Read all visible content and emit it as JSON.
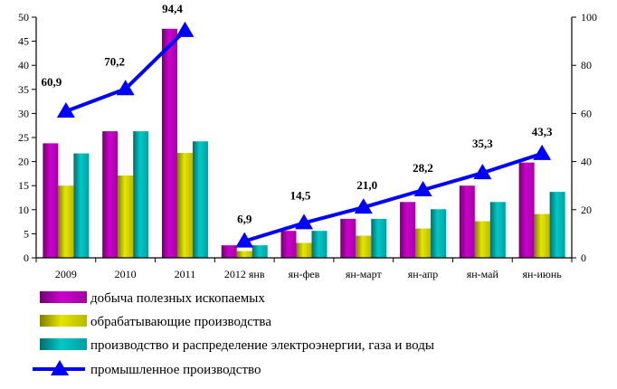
{
  "chart_data": {
    "type": "bar",
    "categories": [
      "2009",
      "2010",
      "2011",
      "2012 янв",
      "ян-фев",
      "ян-март",
      "ян-апр",
      "ян-май",
      "ян-июнь"
    ],
    "series": [
      {
        "name": "добыча полезных ископаемых",
        "type": "bar",
        "axis": "left",
        "color": "#cc00cc",
        "values": [
          23.8,
          26.3,
          47.6,
          2.6,
          5.6,
          8.1,
          11.6,
          15.0,
          19.8
        ]
      },
      {
        "name": "обрабатывающие производства",
        "type": "bar",
        "axis": "left",
        "color": "#e6e600",
        "values": [
          15.0,
          17.1,
          21.8,
          1.4,
          3.1,
          4.6,
          6.1,
          7.6,
          9.1
        ]
      },
      {
        "name": "производство и распределение электроэнергии, газа и воды",
        "type": "bar",
        "axis": "left",
        "color": "#00c8c8",
        "values": [
          21.7,
          26.3,
          24.2,
          2.6,
          5.6,
          8.1,
          10.1,
          11.6,
          13.7
        ]
      },
      {
        "name": "промышленное производство",
        "type": "line",
        "axis": "right",
        "color": "#0000ff",
        "values": [
          60.9,
          70.2,
          94.4,
          6.9,
          14.5,
          21.0,
          28.2,
          35.3,
          43.3
        ],
        "labels": [
          "60,9",
          "70,2",
          "94,4",
          "6,9",
          "14,5",
          "21,0",
          "28,2",
          "35,3",
          "43,3"
        ]
      }
    ],
    "y_left": {
      "min": 0,
      "max": 50,
      "step": 5,
      "ticks": [
        "0",
        "5",
        "10",
        "15",
        "20",
        "25",
        "30",
        "35",
        "40",
        "45",
        "50"
      ]
    },
    "y_right": {
      "min": 0,
      "max": 100,
      "step": 20,
      "ticks": [
        "0",
        "20",
        "40",
        "60",
        "80",
        "100"
      ]
    },
    "grid": false,
    "legend_position": "bottom"
  }
}
